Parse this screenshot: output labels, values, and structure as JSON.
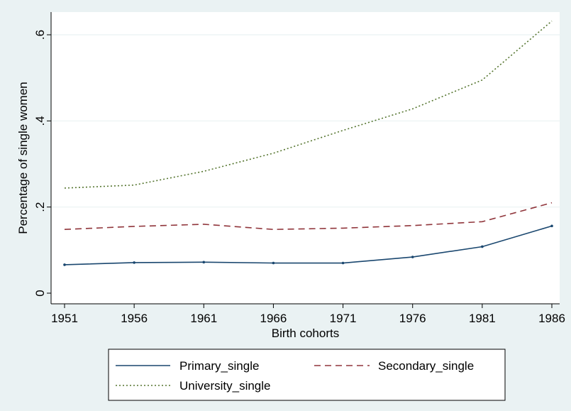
{
  "chart_data": {
    "type": "line",
    "title": "",
    "xlabel": "Birth cohorts",
    "ylabel": "Percentage of single women",
    "x": [
      1951,
      1956,
      1961,
      1966,
      1971,
      1976,
      1981,
      1986
    ],
    "xticks": [
      "1951",
      "1956",
      "1961",
      "1966",
      "1971",
      "1976",
      "1981",
      "1986"
    ],
    "yticks": [
      "0",
      ".2",
      ".4",
      ".6"
    ],
    "ytick_values": [
      0,
      0.2,
      0.4,
      0.6
    ],
    "xlim": [
      1951,
      1986
    ],
    "ylim": [
      -0.02,
      0.65
    ],
    "grid": "horizontal",
    "legend_position": "bottom",
    "series": [
      {
        "name": "Primary_single",
        "values": [
          0.066,
          0.071,
          0.072,
          0.07,
          0.07,
          0.084,
          0.108,
          0.156
        ],
        "color": "#1a476f",
        "style": "solid",
        "markers": true
      },
      {
        "name": "Secondary_single",
        "values": [
          0.148,
          0.155,
          0.16,
          0.148,
          0.151,
          0.157,
          0.166,
          0.21
        ],
        "color": "#90353b",
        "style": "dashed",
        "markers": false
      },
      {
        "name": "University_single",
        "values": [
          0.244,
          0.251,
          0.283,
          0.325,
          0.378,
          0.428,
          0.495,
          0.632
        ],
        "color": "#55752f",
        "style": "dotted",
        "markers": false
      }
    ]
  }
}
